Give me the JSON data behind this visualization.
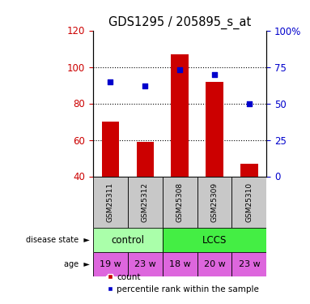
{
  "title": "GDS1295 / 205895_s_at",
  "samples": [
    "GSM25311",
    "GSM25312",
    "GSM25308",
    "GSM25309",
    "GSM25310"
  ],
  "counts": [
    70,
    59,
    107,
    92,
    47
  ],
  "percentiles": [
    65,
    62,
    73,
    70,
    50
  ],
  "ylim_left": [
    40,
    120
  ],
  "ylim_right": [
    0,
    100
  ],
  "yticks_left": [
    40,
    60,
    80,
    100,
    120
  ],
  "yticks_right": [
    0,
    25,
    50,
    75,
    100
  ],
  "bar_color": "#cc0000",
  "scatter_color": "#0000cc",
  "bar_width": 0.5,
  "disease_groups": [
    {
      "label": "control",
      "start": 0,
      "end": 2,
      "color": "#aaffaa"
    },
    {
      "label": "LCCS",
      "start": 2,
      "end": 5,
      "color": "#44ee44"
    }
  ],
  "age": [
    "19 w",
    "23 w",
    "18 w",
    "20 w",
    "23 w"
  ],
  "age_color": "#dd66dd",
  "legend_count_label": "count",
  "legend_pct_label": "percentile rank within the sample",
  "left_ylabel_color": "#cc0000",
  "right_ylabel_color": "#0000cc",
  "grid_yticks": [
    60,
    80,
    100
  ],
  "sample_box_color": "#c8c8c8",
  "fig_width": 3.83,
  "fig_height": 3.75,
  "dpi": 100
}
